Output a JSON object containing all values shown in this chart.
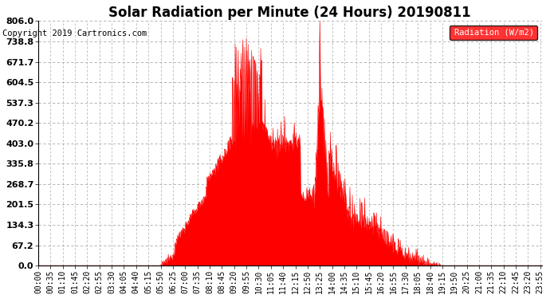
{
  "title": "Solar Radiation per Minute (24 Hours) 20190811",
  "copyright_text": "Copyright 2019 Cartronics.com",
  "legend_label": "Radiation (W/m2)",
  "yticks": [
    0.0,
    67.2,
    134.3,
    201.5,
    268.7,
    335.8,
    403.0,
    470.2,
    537.3,
    604.5,
    671.7,
    738.8,
    806.0
  ],
  "ymax": 806.0,
  "ymin": 0.0,
  "fill_color": "#FF0000",
  "line_color": "#CC0000",
  "dashed_line_color": "#FF0000",
  "background_color": "#FFFFFF",
  "grid_color": "#AAAAAA",
  "title_fontsize": 12,
  "copyright_fontsize": 7.5,
  "tick_label_fontsize": 7,
  "ytick_label_fontsize": 8,
  "xtick_step_minutes": 35
}
